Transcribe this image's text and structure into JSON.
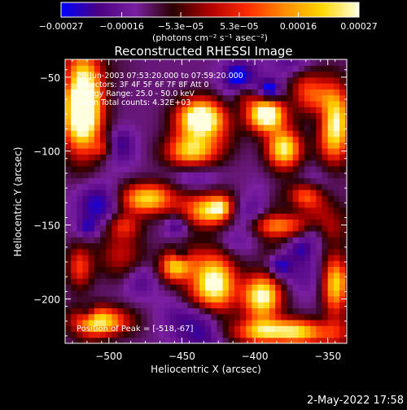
{
  "chart_data": {
    "type": "heatmap",
    "title": "Reconstructed RHESSI Image",
    "xlabel": "Heliocentric X (arcsec)",
    "ylabel": "Heliocentric Y (arcsec)",
    "xlim": [
      -530,
      -337
    ],
    "ylim": [
      -230,
      -38
    ],
    "x_ticks": [
      -500,
      -450,
      -400,
      -350
    ],
    "y_ticks": [
      -50,
      -100,
      -150,
      -200
    ],
    "x_tick_labels": [
      "−500",
      "−450",
      "−400",
      "−350"
    ],
    "y_tick_labels": [
      "−50",
      "−100",
      "−150",
      "−200"
    ],
    "colorbar": {
      "range": [
        -0.00027,
        0.00027
      ],
      "ticks": [
        -0.00027,
        -0.00016,
        -5.3e-05,
        5.3e-05,
        0.00016,
        0.00027
      ],
      "tick_labels": [
        "−0.00027",
        "−0.00016",
        "−5.3e−05",
        "5.3e−05",
        "0.00016",
        "0.00027"
      ],
      "units": "(photons cm⁻² s⁻¹ asec⁻²)",
      "colors": [
        "#0000ff",
        "#4b0082",
        "#7a1fa0",
        "#2a0000",
        "#b00000",
        "#ff2a00",
        "#ff8c00",
        "#ffd700",
        "#ffffe0"
      ]
    },
    "annotations": [
      "20-Jun-2003 07:53:20.000 to 07:59:20.000",
      "Detectors: 3F 4F 5F 6F 7F 8F  Att 0",
      "Energy Range: 25.0 - 50.0 keV",
      "Clean     Total counts: 4.32E+03"
    ],
    "peak_label": "Position of Peak = [-518,-67]",
    "peak": [
      -518,
      -67
    ],
    "sources": [
      {
        "x": -518,
        "y": -67,
        "amp": 1.0,
        "sx": 9,
        "sy": 22
      },
      {
        "x": -437,
        "y": -78,
        "amp": 0.9,
        "sx": 11,
        "sy": 9
      },
      {
        "x": -443,
        "y": -100,
        "amp": 0.65,
        "sx": 12,
        "sy": 8
      },
      {
        "x": -392,
        "y": -75,
        "amp": 0.85,
        "sx": 9,
        "sy": 8
      },
      {
        "x": -380,
        "y": -98,
        "amp": 0.7,
        "sx": 8,
        "sy": 9
      },
      {
        "x": -345,
        "y": -82,
        "amp": 0.7,
        "sx": 7,
        "sy": 16
      },
      {
        "x": -475,
        "y": -132,
        "amp": 0.6,
        "sx": 12,
        "sy": 7
      },
      {
        "x": -430,
        "y": -140,
        "amp": 0.55,
        "sx": 9,
        "sy": 7
      },
      {
        "x": -385,
        "y": -150,
        "amp": 0.6,
        "sx": 14,
        "sy": 6
      },
      {
        "x": -428,
        "y": -190,
        "amp": 0.8,
        "sx": 10,
        "sy": 14
      },
      {
        "x": -455,
        "y": -178,
        "amp": 0.55,
        "sx": 7,
        "sy": 7
      },
      {
        "x": -395,
        "y": -198,
        "amp": 0.75,
        "sx": 9,
        "sy": 10
      },
      {
        "x": -345,
        "y": -190,
        "amp": 0.6,
        "sx": 6,
        "sy": 14
      },
      {
        "x": -380,
        "y": -222,
        "amp": 0.75,
        "sx": 22,
        "sy": 6
      },
      {
        "x": -505,
        "y": -215,
        "amp": 0.75,
        "sx": 13,
        "sy": 7
      },
      {
        "x": -520,
        "y": -178,
        "amp": 0.35,
        "sx": 6,
        "sy": 10
      },
      {
        "x": -490,
        "y": -150,
        "amp": 0.3,
        "sx": 8,
        "sy": 6
      },
      {
        "x": -365,
        "y": -130,
        "amp": 0.4,
        "sx": 8,
        "sy": 6
      }
    ],
    "grid": false
  },
  "footer": {
    "date": "2-May-2022 17:58"
  }
}
